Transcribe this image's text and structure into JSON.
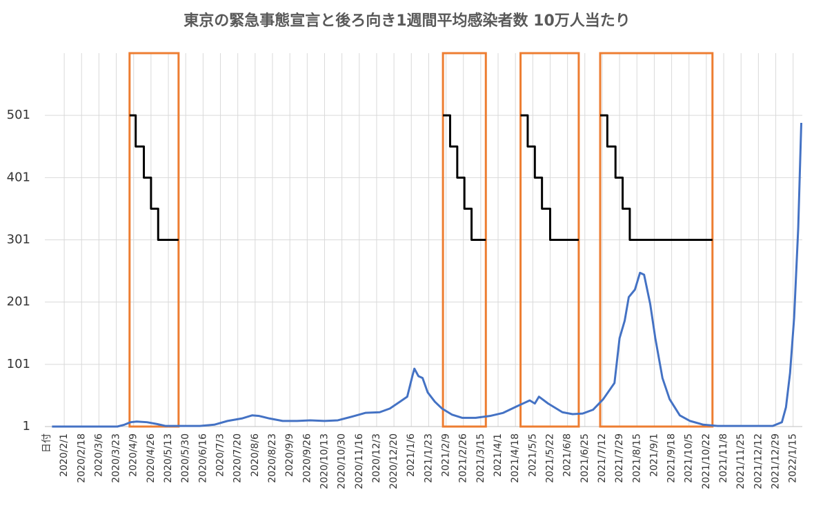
{
  "chart_data": {
    "type": "line",
    "title": "東京の緊急事態宣言と後ろ向き1週間平均感染者数 10万人当たり",
    "x_label": "日付",
    "xlim": [
      "2020/1/13",
      "2022/1/24"
    ],
    "xticks": [
      "2020/2/1",
      "2020/2/18",
      "2020/3/6",
      "2020/3/23",
      "2020/4/9",
      "2020/4/26",
      "2020/5/13",
      "2020/5/30",
      "2020/6/16",
      "2020/7/3",
      "2020/7/20",
      "2020/8/6",
      "2020/8/23",
      "2020/9/9",
      "2020/9/26",
      "2020/10/13",
      "2020/10/30",
      "2020/11/16",
      "2020/12/3",
      "2020/12/20",
      "2021/1/6",
      "2021/1/23",
      "2021/2/9",
      "2021/2/26",
      "2021/3/15",
      "2021/4/1",
      "2021/4/18",
      "2021/5/5",
      "2021/5/22",
      "2021/6/8",
      "2021/6/25",
      "2021/7/12",
      "2021/7/29",
      "2021/8/15",
      "2021/9/1",
      "2021/9/18",
      "2021/10/5",
      "2021/10/22",
      "2021/11/8",
      "2021/11/25",
      "2021/12/12",
      "2021/12/29",
      "2022/1/15"
    ],
    "ylim": [
      1,
      601
    ],
    "yticks": [
      1,
      101,
      201,
      301,
      401,
      501
    ],
    "grid": true,
    "series": [
      {
        "color": "#4472c4",
        "x": [
          "2020/1/20",
          "2020/3/24",
          "2020/3/31",
          "2020/4/6",
          "2020/4/12",
          "2020/4/22",
          "2020/5/2",
          "2020/5/10",
          "2020/5/24",
          "2020/6/13",
          "2020/6/27",
          "2020/7/10",
          "2020/7/24",
          "2020/8/3",
          "2020/8/10",
          "2020/8/20",
          "2020/9/2",
          "2020/9/16",
          "2020/9/29",
          "2020/10/13",
          "2020/10/26",
          "2020/11/9",
          "2020/11/22",
          "2020/12/6",
          "2020/12/16",
          "2020/12/26",
          "2021/1/2",
          "2021/1/7",
          "2021/1/9",
          "2021/1/13",
          "2021/1/17",
          "2021/1/22",
          "2021/1/29",
          "2021/2/5",
          "2021/2/15",
          "2021/2/25",
          "2021/3/10",
          "2021/3/24",
          "2021/4/6",
          "2021/4/20",
          "2021/5/2",
          "2021/5/7",
          "2021/5/11",
          "2021/5/20",
          "2021/6/3",
          "2021/6/13",
          "2021/6/23",
          "2021/7/3",
          "2021/7/13",
          "2021/7/24",
          "2021/7/29",
          "2021/8/3",
          "2021/8/7",
          "2021/8/13",
          "2021/8/18",
          "2021/8/22",
          "2021/8/28",
          "2021/9/2",
          "2021/9/9",
          "2021/9/16",
          "2021/9/26",
          "2021/10/6",
          "2021/10/19",
          "2021/11/2",
          "2021/11/29",
          "2021/12/26",
          "2022/1/4",
          "2022/1/8",
          "2022/1/12",
          "2022/1/16",
          "2022/1/20",
          "2022/1/23"
        ],
        "values": [
          1,
          1,
          4,
          8,
          9,
          8,
          5,
          2,
          2,
          2,
          4,
          10,
          14,
          19,
          18,
          14,
          10,
          10,
          11,
          10,
          11,
          17,
          23,
          24,
          30,
          41,
          49,
          82,
          94,
          82,
          79,
          56,
          41,
          30,
          20,
          15,
          15,
          18,
          23,
          34,
          43,
          38,
          49,
          38,
          24,
          21,
          22,
          28,
          45,
          71,
          143,
          171,
          209,
          221,
          248,
          245,
          198,
          143,
          79,
          45,
          19,
          10,
          4,
          2,
          2,
          2,
          8,
          32,
          87,
          176,
          320,
          489
        ]
      },
      {
        "color": "#000000",
        "x": [
          "2020/4/5",
          "2020/4/11",
          "2020/4/11",
          "2020/4/19",
          "2020/4/19",
          "2020/4/26",
          "2020/4/26",
          "2020/5/3",
          "2020/5/3",
          "2020/5/23",
          "2020/6/1",
          "2021/2/6",
          "2021/2/13",
          "2021/2/13",
          "2021/2/20",
          "2021/2/20",
          "2021/2/27",
          "2021/2/27",
          "2021/3/6",
          "2021/3/6",
          "2021/3/20",
          "2021/4/1",
          "2021/4/23",
          "2021/4/30",
          "2021/4/30",
          "2021/5/7",
          "2021/5/7",
          "2021/5/14",
          "2021/5/14",
          "2021/5/22",
          "2021/5/22",
          "2021/6/19",
          "2021/7/1",
          "2021/7/10",
          "2021/7/17",
          "2021/7/17",
          "2021/7/25",
          "2021/7/25",
          "2021/8/1",
          "2021/8/1",
          "2021/8/8",
          "2021/8/8",
          "2021/10/28"
        ],
        "values": [
          501,
          501,
          451,
          451,
          401,
          401,
          351,
          351,
          301,
          301,
          null,
          501,
          501,
          451,
          451,
          401,
          401,
          351,
          351,
          301,
          301,
          null,
          501,
          501,
          451,
          451,
          401,
          401,
          351,
          351,
          301,
          301,
          null,
          501,
          501,
          451,
          451,
          401,
          401,
          351,
          351,
          301,
          301
        ]
      }
    ],
    "bands": [
      {
        "start": "2020/4/5",
        "end": "2020/5/23"
      },
      {
        "start": "2021/2/6",
        "end": "2021/3/20"
      },
      {
        "start": "2021/4/23",
        "end": "2021/6/19"
      },
      {
        "start": "2021/7/10",
        "end": "2021/10/28"
      }
    ],
    "band_color": "#ed7d31"
  }
}
